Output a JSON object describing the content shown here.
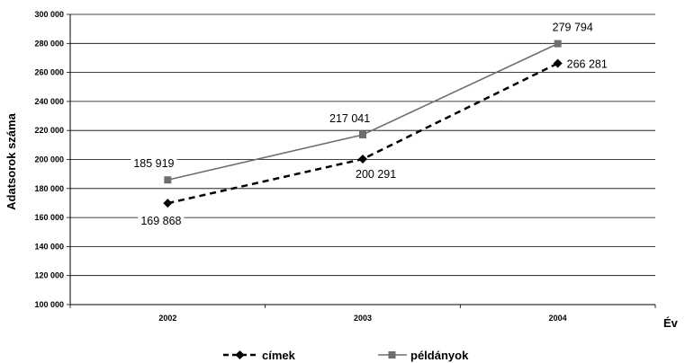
{
  "chart_data": {
    "type": "line",
    "categories": [
      "2002",
      "2003",
      "2004"
    ],
    "xlabel": "Év",
    "ylabel": "Adatsorok száma",
    "ylim": [
      100000,
      300000
    ],
    "yticks": [
      "100 000",
      "120 000",
      "140 000",
      "160 000",
      "180 000",
      "200 000",
      "220 000",
      "240 000",
      "260 000",
      "280 000",
      "300 000"
    ],
    "grid": true,
    "legend": "bottom",
    "series": [
      {
        "name": "címek",
        "values": [
          169868,
          200291,
          266281
        ],
        "labels": [
          "169 868",
          "200 291",
          "266 281"
        ],
        "color": "#000000",
        "line_style": "dashed",
        "marker": "diamond"
      },
      {
        "name": "példányok",
        "values": [
          185919,
          217041,
          279794
        ],
        "labels": [
          "185 919",
          "217 041",
          "279 794"
        ],
        "color": "#6e6e6e",
        "line_style": "solid",
        "marker": "square"
      }
    ]
  }
}
